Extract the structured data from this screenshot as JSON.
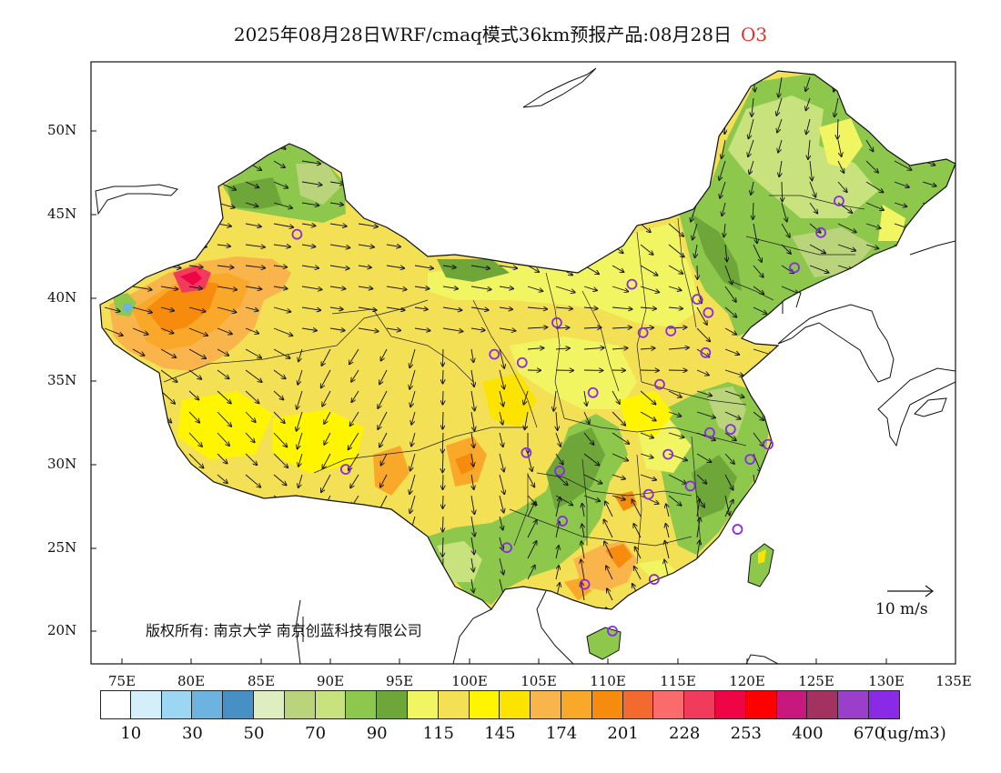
{
  "title": {
    "text": "2025年08月28日WRF/cmaq模式36km预报产品:08月28日",
    "pollutant": "O3"
  },
  "copyright": "版权所有: 南京大学  南京创蓝科技有限公司",
  "lat_ticks": [
    "50N",
    "45N",
    "40N",
    "35N",
    "30N",
    "25N",
    "20N"
  ],
  "lon_ticks": [
    "75E",
    "80E",
    "85E",
    "90E",
    "95E",
    "100E",
    "105E",
    "110E",
    "115E",
    "120E",
    "125E",
    "130E",
    "135E"
  ],
  "wind_scale_label": "10 m/s",
  "legend": {
    "unit": "(ug/m3)",
    "labels": [
      "10",
      "30",
      "50",
      "70",
      "90",
      "115",
      "145",
      "174",
      "201",
      "228",
      "253",
      "400",
      "670"
    ],
    "colors": [
      "#ffffff",
      "#d4eefa",
      "#9bd7f3",
      "#6cb3e0",
      "#4790c5",
      "#dfeec0",
      "#bad47c",
      "#c8e27e",
      "#8dc84c",
      "#6ea63a",
      "#f2f562",
      "#f3e054",
      "#fff500",
      "#fde300",
      "#f9b54c",
      "#faa829",
      "#f78b0e",
      "#f26a2e",
      "#fb6b6b",
      "#f13b5c",
      "#ef0545",
      "#fe0000",
      "#c8187e",
      "#a43260",
      "#9b3ec9",
      "#8b2ae6"
    ]
  },
  "stations": [
    {
      "name": "urumqi",
      "lon": 87.6,
      "lat": 43.8
    },
    {
      "name": "harbin",
      "lon": 126.6,
      "lat": 45.8
    },
    {
      "name": "changchun",
      "lon": 125.3,
      "lat": 43.9
    },
    {
      "name": "shenyang",
      "lon": 123.4,
      "lat": 41.8
    },
    {
      "name": "hohhot",
      "lon": 111.7,
      "lat": 40.8
    },
    {
      "name": "beijing",
      "lon": 116.4,
      "lat": 39.9
    },
    {
      "name": "tianjin",
      "lon": 117.2,
      "lat": 39.1
    },
    {
      "name": "shijiazhuang",
      "lon": 114.5,
      "lat": 38.0
    },
    {
      "name": "taiyuan",
      "lon": 112.5,
      "lat": 37.9
    },
    {
      "name": "jinan",
      "lon": 117.0,
      "lat": 36.7
    },
    {
      "name": "yinchuan",
      "lon": 106.3,
      "lat": 38.5
    },
    {
      "name": "xining",
      "lon": 101.8,
      "lat": 36.6
    },
    {
      "name": "lanzhou",
      "lon": 103.8,
      "lat": 36.1
    },
    {
      "name": "xian",
      "lon": 108.9,
      "lat": 34.3
    },
    {
      "name": "zhengzhou",
      "lon": 113.7,
      "lat": 34.8
    },
    {
      "name": "nanjing",
      "lon": 118.8,
      "lat": 32.1
    },
    {
      "name": "hefei",
      "lon": 117.3,
      "lat": 31.9
    },
    {
      "name": "shanghai",
      "lon": 121.5,
      "lat": 31.2
    },
    {
      "name": "hangzhou",
      "lon": 120.2,
      "lat": 30.3
    },
    {
      "name": "wuhan",
      "lon": 114.3,
      "lat": 30.6
    },
    {
      "name": "lhasa",
      "lon": 91.1,
      "lat": 29.7
    },
    {
      "name": "chengdu",
      "lon": 104.1,
      "lat": 30.7
    },
    {
      "name": "chongqing",
      "lon": 106.5,
      "lat": 29.6
    },
    {
      "name": "changsha",
      "lon": 112.9,
      "lat": 28.2
    },
    {
      "name": "nanchang",
      "lon": 115.9,
      "lat": 28.7
    },
    {
      "name": "guiyang",
      "lon": 106.7,
      "lat": 26.6
    },
    {
      "name": "fuzhou",
      "lon": 119.3,
      "lat": 26.1
    },
    {
      "name": "kunming",
      "lon": 102.7,
      "lat": 25.0
    },
    {
      "name": "nanning",
      "lon": 108.3,
      "lat": 22.8
    },
    {
      "name": "guangzhou",
      "lon": 113.3,
      "lat": 23.1
    },
    {
      "name": "haikou",
      "lon": 110.3,
      "lat": 20.0
    }
  ]
}
